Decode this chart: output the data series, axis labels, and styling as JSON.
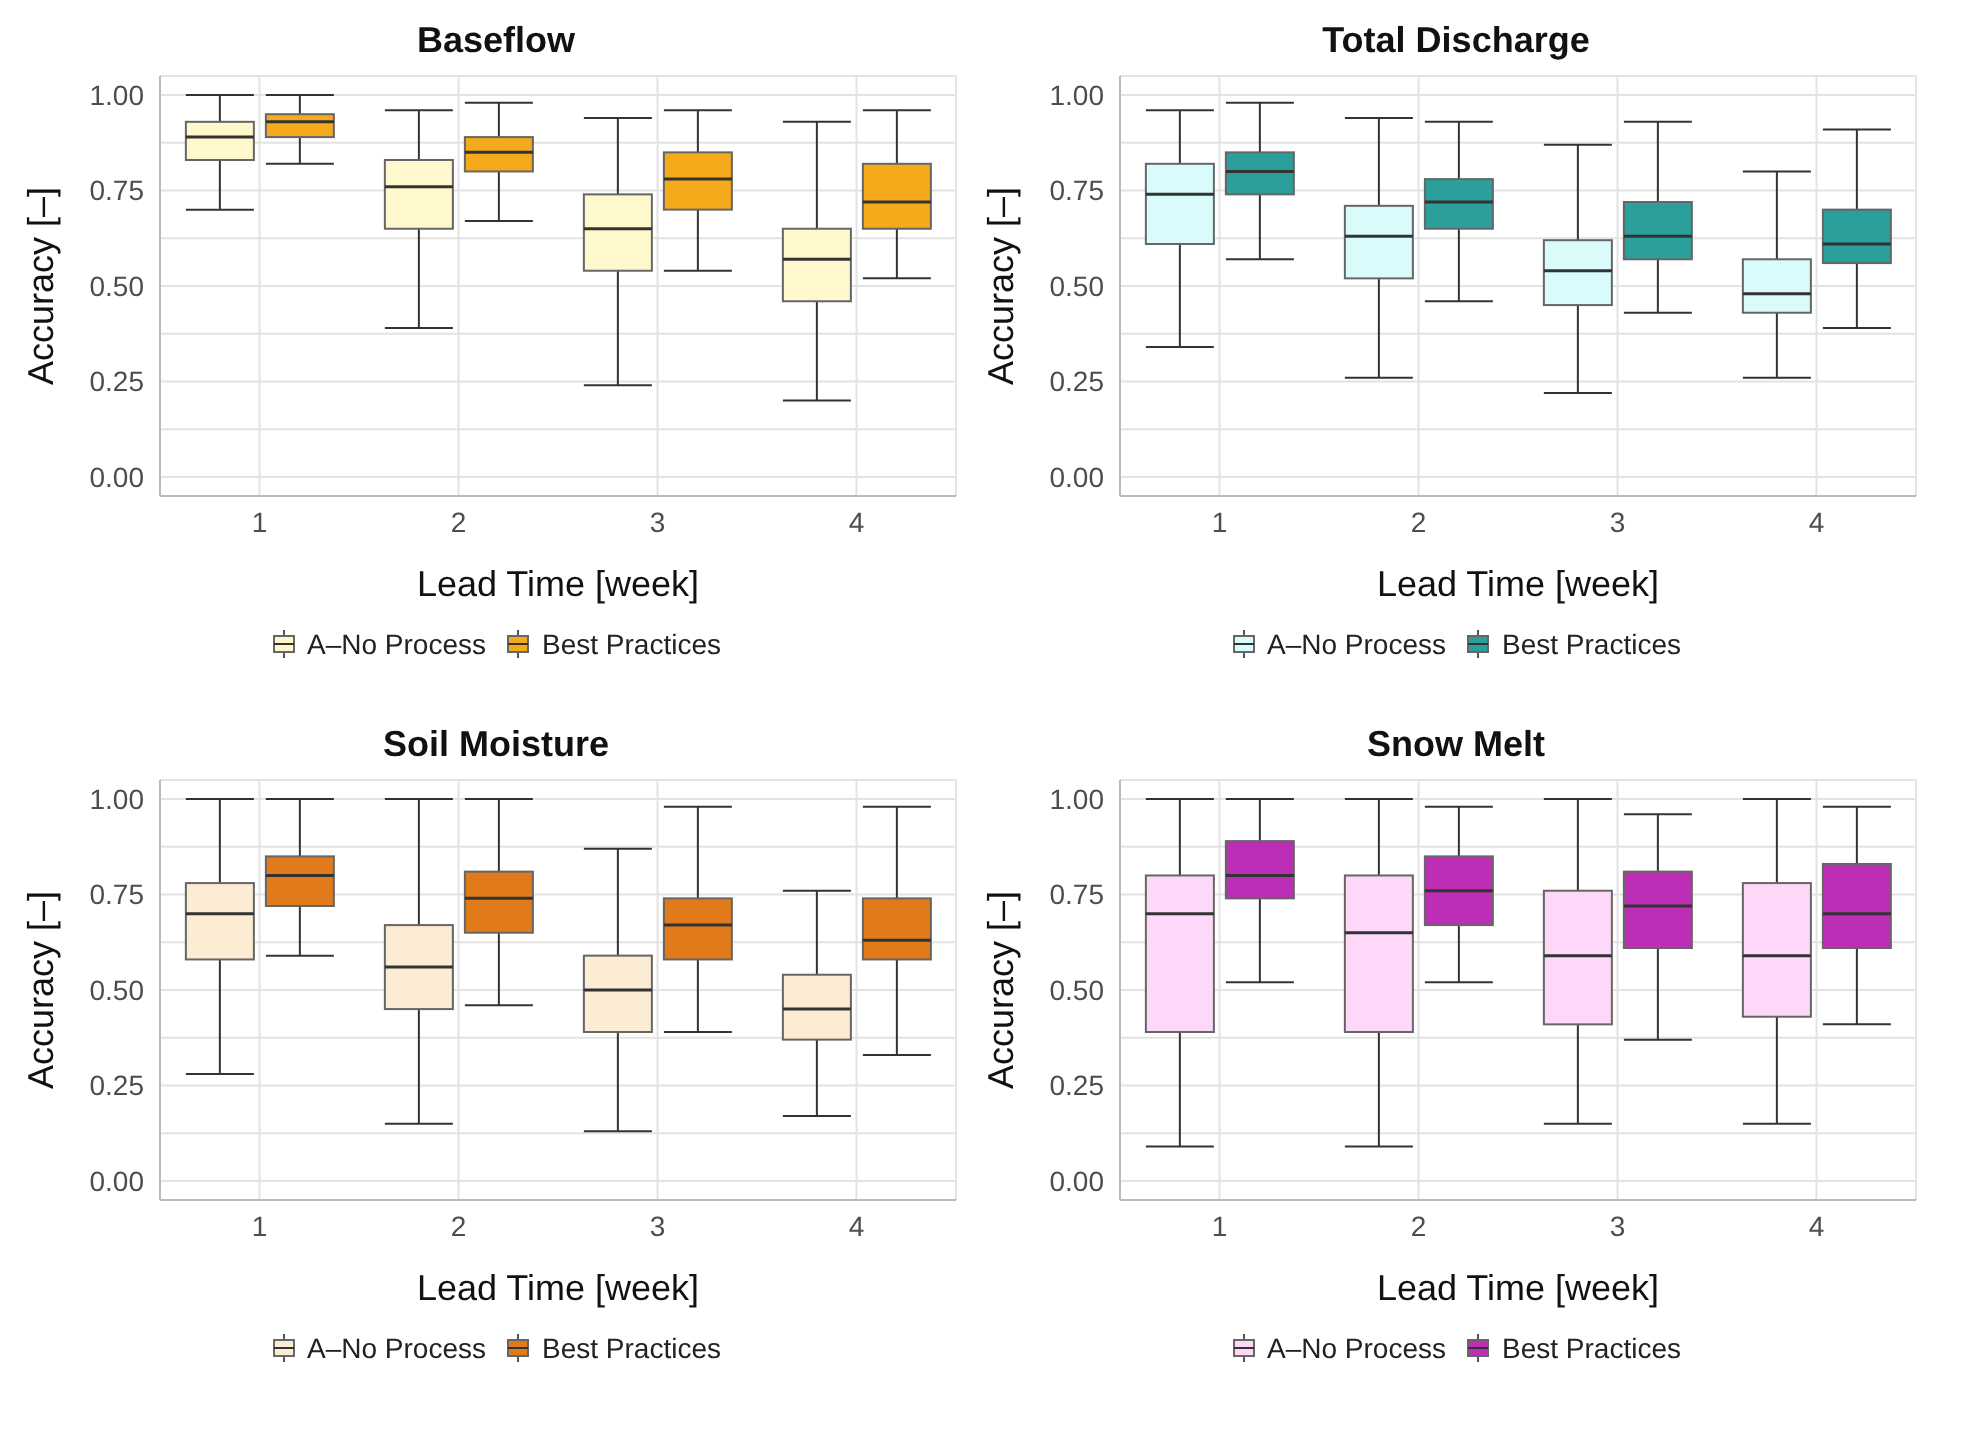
{
  "chart_data": [
    {
      "type": "box",
      "title": "Baseflow",
      "xlabel": "Lead Time [week]",
      "ylabel": "Accuracy [–]",
      "categories": [
        "1",
        "2",
        "3",
        "4"
      ],
      "ylim": [
        -0.05,
        1.05
      ],
      "yticks": [
        {
          "value": 0,
          "label": "0.00"
        },
        {
          "value": 0.125,
          "label": null
        },
        {
          "value": 0.25,
          "label": "0.25"
        },
        {
          "value": 0.375,
          "label": null
        },
        {
          "value": 0.5,
          "label": "0.50"
        },
        {
          "value": 0.625,
          "label": null
        },
        {
          "value": 0.75,
          "label": "0.75"
        },
        {
          "value": 0.875,
          "label": null
        },
        {
          "value": 1,
          "label": "1.00"
        }
      ],
      "grid": true,
      "legend": "bottom",
      "series": [
        {
          "name": "A–No Process",
          "color": "#fff8cc",
          "boxes": [
            {
              "low": 0.7,
              "q1": 0.83,
              "median": 0.89,
              "q3": 0.93,
              "high": 1.0
            },
            {
              "low": 0.39,
              "q1": 0.65,
              "median": 0.76,
              "q3": 0.83,
              "high": 0.96
            },
            {
              "low": 0.24,
              "q1": 0.54,
              "median": 0.65,
              "q3": 0.74,
              "high": 0.94
            },
            {
              "low": 0.2,
              "q1": 0.46,
              "median": 0.57,
              "q3": 0.65,
              "high": 0.93
            }
          ]
        },
        {
          "name": "Best Practices",
          "color": "#f5aa1c",
          "boxes": [
            {
              "low": 0.82,
              "q1": 0.89,
              "median": 0.93,
              "q3": 0.95,
              "high": 1.0
            },
            {
              "low": 0.67,
              "q1": 0.8,
              "median": 0.85,
              "q3": 0.89,
              "high": 0.98
            },
            {
              "low": 0.54,
              "q1": 0.7,
              "median": 0.78,
              "q3": 0.85,
              "high": 0.96
            },
            {
              "low": 0.52,
              "q1": 0.65,
              "median": 0.72,
              "q3": 0.82,
              "high": 0.96
            }
          ]
        }
      ]
    },
    {
      "type": "box",
      "title": "Total Discharge",
      "xlabel": "Lead Time [week]",
      "ylabel": "Accuracy [–]",
      "categories": [
        "1",
        "2",
        "3",
        "4"
      ],
      "ylim": [
        -0.05,
        1.05
      ],
      "yticks": [
        {
          "value": 0,
          "label": "0.00"
        },
        {
          "value": 0.125,
          "label": null
        },
        {
          "value": 0.25,
          "label": "0.25"
        },
        {
          "value": 0.375,
          "label": null
        },
        {
          "value": 0.5,
          "label": "0.50"
        },
        {
          "value": 0.625,
          "label": null
        },
        {
          "value": 0.75,
          "label": "0.75"
        },
        {
          "value": 0.875,
          "label": null
        },
        {
          "value": 1,
          "label": "1.00"
        }
      ],
      "grid": true,
      "legend": "bottom",
      "series": [
        {
          "name": "A–No Process",
          "color": "#d9fbfb",
          "boxes": [
            {
              "low": 0.34,
              "q1": 0.61,
              "median": 0.74,
              "q3": 0.82,
              "high": 0.96
            },
            {
              "low": 0.26,
              "q1": 0.52,
              "median": 0.63,
              "q3": 0.71,
              "high": 0.94
            },
            {
              "low": 0.22,
              "q1": 0.45,
              "median": 0.54,
              "q3": 0.62,
              "high": 0.87
            },
            {
              "low": 0.26,
              "q1": 0.43,
              "median": 0.48,
              "q3": 0.57,
              "high": 0.8
            }
          ]
        },
        {
          "name": "Best Practices",
          "color": "#2a9f9c",
          "boxes": [
            {
              "low": 0.57,
              "q1": 0.74,
              "median": 0.8,
              "q3": 0.85,
              "high": 0.98
            },
            {
              "low": 0.46,
              "q1": 0.65,
              "median": 0.72,
              "q3": 0.78,
              "high": 0.93
            },
            {
              "low": 0.43,
              "q1": 0.57,
              "median": 0.63,
              "q3": 0.72,
              "high": 0.93
            },
            {
              "low": 0.39,
              "q1": 0.56,
              "median": 0.61,
              "q3": 0.7,
              "high": 0.91
            }
          ]
        }
      ]
    },
    {
      "type": "box",
      "title": "Soil Moisture",
      "xlabel": "Lead Time [week]",
      "ylabel": "Accuracy [–]",
      "categories": [
        "1",
        "2",
        "3",
        "4"
      ],
      "ylim": [
        -0.05,
        1.05
      ],
      "yticks": [
        {
          "value": 0,
          "label": "0.00"
        },
        {
          "value": 0.125,
          "label": null
        },
        {
          "value": 0.25,
          "label": "0.25"
        },
        {
          "value": 0.375,
          "label": null
        },
        {
          "value": 0.5,
          "label": "0.50"
        },
        {
          "value": 0.625,
          "label": null
        },
        {
          "value": 0.75,
          "label": "0.75"
        },
        {
          "value": 0.875,
          "label": null
        },
        {
          "value": 1,
          "label": "1.00"
        }
      ],
      "grid": true,
      "legend": "bottom",
      "series": [
        {
          "name": "A–No Process",
          "color": "#fdecd4",
          "boxes": [
            {
              "low": 0.28,
              "q1": 0.58,
              "median": 0.7,
              "q3": 0.78,
              "high": 1.0
            },
            {
              "low": 0.15,
              "q1": 0.45,
              "median": 0.56,
              "q3": 0.67,
              "high": 1.0
            },
            {
              "low": 0.13,
              "q1": 0.39,
              "median": 0.5,
              "q3": 0.59,
              "high": 0.87
            },
            {
              "low": 0.17,
              "q1": 0.37,
              "median": 0.45,
              "q3": 0.54,
              "high": 0.76
            }
          ]
        },
        {
          "name": "Best Practices",
          "color": "#e07a1a",
          "boxes": [
            {
              "low": 0.59,
              "q1": 0.72,
              "median": 0.8,
              "q3": 0.85,
              "high": 1.0
            },
            {
              "low": 0.46,
              "q1": 0.65,
              "median": 0.74,
              "q3": 0.81,
              "high": 1.0
            },
            {
              "low": 0.39,
              "q1": 0.58,
              "median": 0.67,
              "q3": 0.74,
              "high": 0.98
            },
            {
              "low": 0.33,
              "q1": 0.58,
              "median": 0.63,
              "q3": 0.74,
              "high": 0.98
            }
          ]
        }
      ]
    },
    {
      "type": "box",
      "title": "Snow Melt",
      "xlabel": "Lead Time [week]",
      "ylabel": "Accuracy [–]",
      "categories": [
        "1",
        "2",
        "3",
        "4"
      ],
      "ylim": [
        -0.05,
        1.05
      ],
      "yticks": [
        {
          "value": 0,
          "label": "0.00"
        },
        {
          "value": 0.125,
          "label": null
        },
        {
          "value": 0.25,
          "label": "0.25"
        },
        {
          "value": 0.375,
          "label": null
        },
        {
          "value": 0.5,
          "label": "0.50"
        },
        {
          "value": 0.625,
          "label": null
        },
        {
          "value": 0.75,
          "label": "0.75"
        },
        {
          "value": 0.875,
          "label": null
        },
        {
          "value": 1,
          "label": "1.00"
        }
      ],
      "grid": true,
      "legend": "bottom",
      "series": [
        {
          "name": "A–No Process",
          "color": "#fed8f8",
          "boxes": [
            {
              "low": 0.09,
              "q1": 0.39,
              "median": 0.7,
              "q3": 0.8,
              "high": 1.0
            },
            {
              "low": 0.09,
              "q1": 0.39,
              "median": 0.65,
              "q3": 0.8,
              "high": 1.0
            },
            {
              "low": 0.15,
              "q1": 0.41,
              "median": 0.59,
              "q3": 0.76,
              "high": 1.0
            },
            {
              "low": 0.15,
              "q1": 0.43,
              "median": 0.59,
              "q3": 0.78,
              "high": 1.0
            }
          ]
        },
        {
          "name": "Best Practices",
          "color": "#bb2eb5",
          "boxes": [
            {
              "low": 0.52,
              "q1": 0.74,
              "median": 0.8,
              "q3": 0.89,
              "high": 1.0
            },
            {
              "low": 0.52,
              "q1": 0.67,
              "median": 0.76,
              "q3": 0.85,
              "high": 0.98
            },
            {
              "low": 0.37,
              "q1": 0.61,
              "median": 0.72,
              "q3": 0.81,
              "high": 0.96
            },
            {
              "low": 0.41,
              "q1": 0.61,
              "median": 0.7,
              "q3": 0.83,
              "high": 0.98
            }
          ]
        }
      ]
    }
  ]
}
